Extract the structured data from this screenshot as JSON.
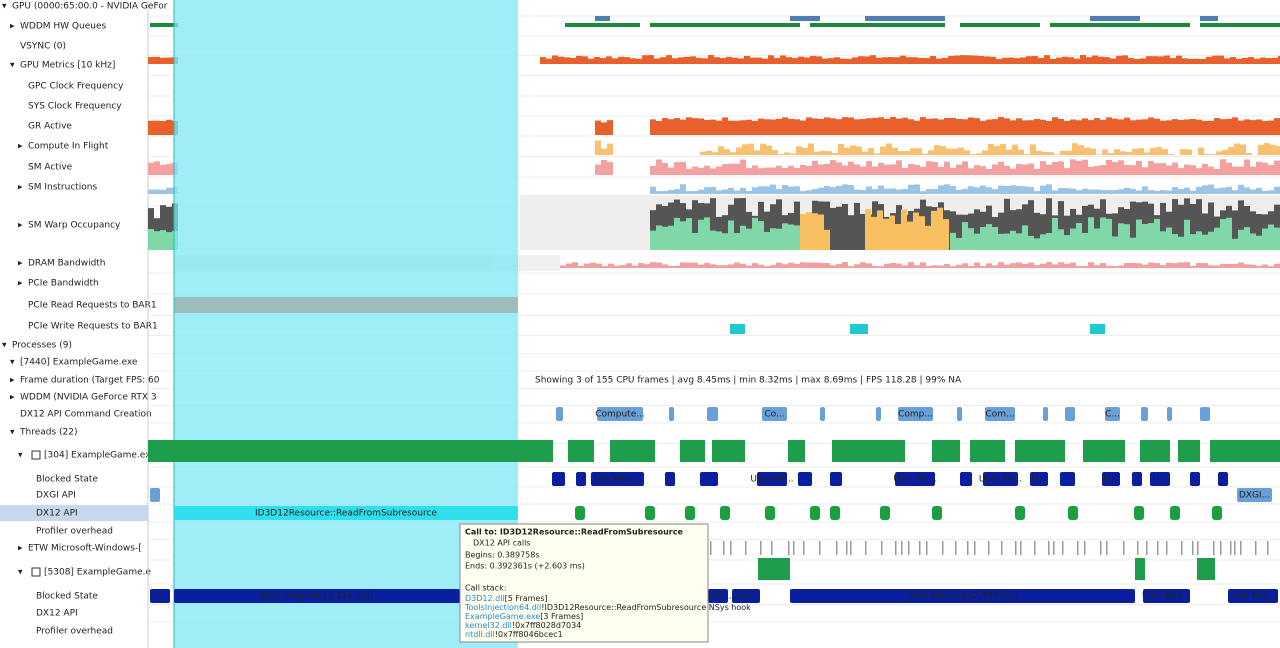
{
  "tree": [
    "GPU (0000:65:00.0 - NVIDIA GeFor",
    "WDDM HW Queues",
    "VSYNC (0)",
    "GPU Metrics [10 kHz]",
    "GPC Clock Frequency",
    "SYS Clock Frequency",
    "GR Active",
    "Compute In Flight",
    "SM Active",
    "SM Instructions",
    "SM Warp Occupancy",
    "DRAM Bandwidth",
    "PCIe Bandwidth",
    "PCIe Read Requests to BAR1",
    "PCIe Write Requests to BAR1",
    "Processes (9)",
    "[7440] ExampleGame.exe",
    "Frame duration (Target FPS: 60",
    "WDDM (NVIDIA GeForce RTX 3",
    "DX12 API Command Creation",
    "Threads (22)",
    "[304] ExampleGame.ex",
    "Blocked State",
    "DXGI API",
    "DX12 API",
    "Profiler overhead",
    "ETW Microsoft-Windows-[",
    "[5308] ExampleGame.e",
    "Blocked State",
    "DX12 API",
    "Profiler overhead"
  ],
  "frame_stats": "Showing 3 of 155 CPU frames | avg 8.45ms | min 8.32ms | max 8.69ms | FPS 118.28 | 99% NA",
  "command_creation": [
    "Compute...",
    "Co...",
    "Comp...",
    "Com...",
    "C..."
  ],
  "blocked_state": [
    "User Requ...",
    "User Re...",
    "User Re...",
    "User Re...",
    "U...",
    "U...",
    "U..."
  ],
  "dxgi_api": [
    "DXGI..."
  ],
  "dx12_api": [
    "ID3D12Resource::ReadFromSubresource"
  ],
  "thread2_blocked": [
    "Us...",
    "User Request [3.714 ms]",
    "User...",
    "User...",
    "User Request [2.599 ms]",
    "User Req...",
    "User Req..."
  ],
  "tooltip": {
    "title": "Call to: ID3D12Resource::ReadFromSubresource",
    "category": "DX12 API calls",
    "begins": "Begins: 0.389758s",
    "ends": "Ends: 0.392361s (+2.603 ms)",
    "stack_title": "Call stack:",
    "stack": [
      [
        "D3D12.dll",
        "[5 Frames]"
      ],
      [
        "ToolsInjection64.dll",
        "!ID3D12Resource::ReadFromSubresource NSys hook"
      ],
      [
        "ExampleGame.exe",
        "[3 Frames]"
      ],
      [
        "kernel32.dll",
        "!0x7ff8028d7034"
      ],
      [
        "ntdll.dll",
        "!0x7ff8046bcec1"
      ]
    ]
  }
}
